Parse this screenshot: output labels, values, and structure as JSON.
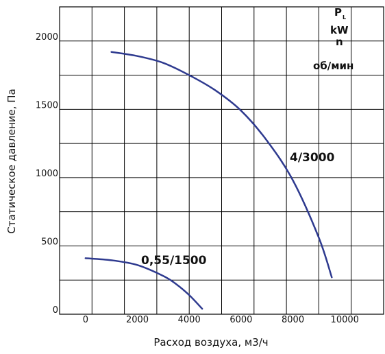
{
  "chart_data": {
    "type": "line",
    "title": "",
    "xlabel": "Расход воздуха, м3/ч",
    "ylabel": "Статическое давление, Па",
    "xlim": [
      -1000,
      11500
    ],
    "ylim": [
      0,
      2250
    ],
    "xticks": [
      0,
      2000,
      4000,
      6000,
      8000,
      10000
    ],
    "xtick_labels": [
      "0",
      "2000",
      "4000",
      "6000",
      "8000",
      "10000"
    ],
    "yticks": [
      0,
      500,
      1000,
      1500,
      2000
    ],
    "ytick_labels": [
      "0",
      "500",
      "1000",
      "1500",
      "2000"
    ],
    "x_grid_step": 1250,
    "y_grid_step": 250,
    "grid": true,
    "legend": {
      "p_main": "P",
      "p_sub": "L",
      "power_unit": "kW",
      "speed": "n",
      "speed_unit": "об/мин"
    },
    "series": [
      {
        "name": "4/3000",
        "color": "#2e3a8f",
        "x": [
          1000,
          2000,
          3000,
          4000,
          5000,
          6000,
          7000,
          8000,
          9000,
          9500
        ],
        "y": [
          1920,
          1890,
          1840,
          1750,
          1640,
          1490,
          1270,
          980,
          560,
          270
        ]
      },
      {
        "name": "0,55/1500",
        "color": "#2e3a8f",
        "x": [
          0,
          1000,
          2000,
          3000,
          3500,
          4000,
          4500
        ],
        "y": [
          410,
          395,
          360,
          280,
          220,
          140,
          40
        ]
      }
    ]
  }
}
